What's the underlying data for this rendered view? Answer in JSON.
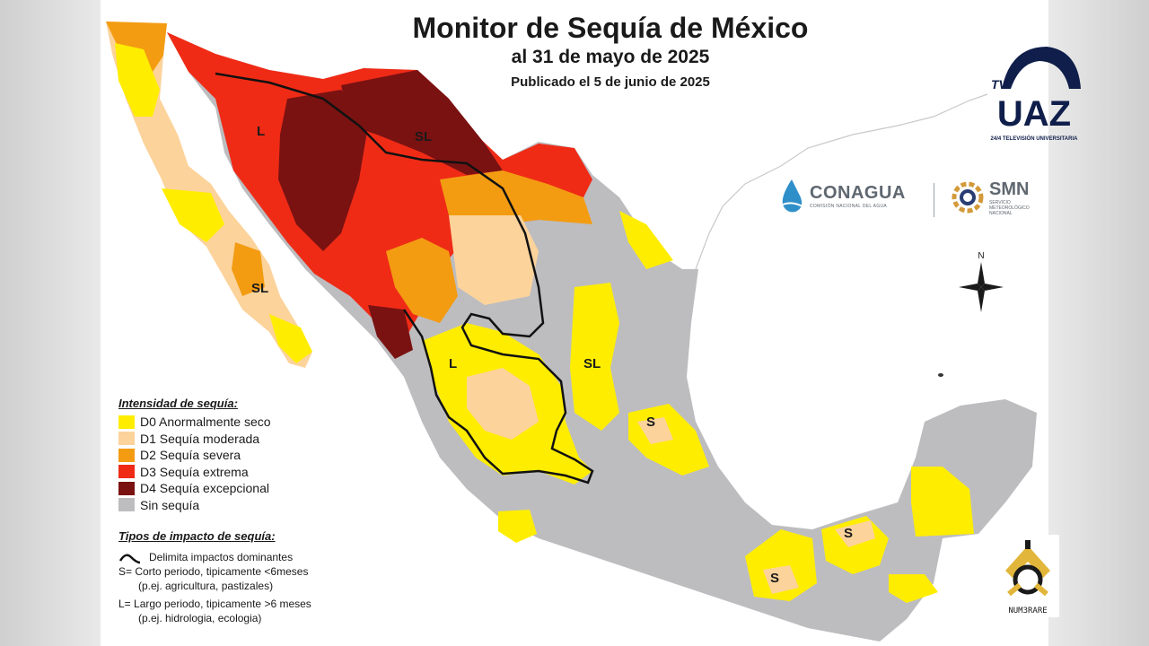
{
  "title": "Monitor de Sequía de México",
  "subtitle": "al 31 de mayo de 2025",
  "published": "Publicado el 5 de junio de 2025",
  "legend": {
    "heading": "Intensidad de sequía:",
    "items": [
      {
        "label": "D0 Anormalmente seco",
        "color": "#ffed00"
      },
      {
        "label": "D1 Sequía moderada",
        "color": "#fcd39b"
      },
      {
        "label": "D2 Sequía severa",
        "color": "#f39c12"
      },
      {
        "label": "D3 Sequía extrema",
        "color": "#ef2b16"
      },
      {
        "label": "D4 Sequía excepcional",
        "color": "#7a1212"
      },
      {
        "label": "Sin sequía",
        "color": "#bdbdc0"
      }
    ]
  },
  "impact": {
    "heading": "Tipos de impacto de sequía:",
    "line_label": "Delimita impactos dominantes",
    "short_label": "S= Corto periodo, tipicamente <6meses",
    "short_example": "(p.ej. agricultura, pastizales)",
    "long_label": "L= Largo periodo, tipicamente >6 meses",
    "long_example": "(p.ej. hidrologia, ecologia)"
  },
  "region_labels": {
    "l_nw": "L",
    "sl_north": "SL",
    "sl_baja": "SL",
    "l_center": "L",
    "sl_east": "SL",
    "s_center": "S",
    "s_south": "S",
    "s_southeast": "S"
  },
  "logos": {
    "tvuaz_small": "TV",
    "tvuaz_main": "UAZ",
    "tvuaz_sub": "24/4 TELEVISIÓN UNIVERSITARIA",
    "conagua": "CONAGUA",
    "conagua_sub": "COMISIÓN NACIONAL DEL AGUA",
    "smn": "SMN",
    "smn_sub1": "SERVICIO",
    "smn_sub2": "METEOROLÓGICO",
    "smn_sub3": "NACIONAL",
    "numerare": "NUM3RARE"
  },
  "compass": {
    "north_label": "N"
  }
}
